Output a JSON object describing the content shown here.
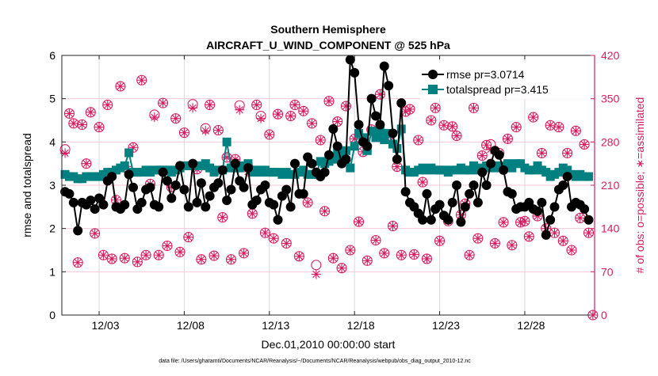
{
  "chart_data": {
    "type": "line",
    "title": [
      "Southern Hemisphere",
      "AIRCRAFT_U_WIND_COMPONENT @ 525 hPa"
    ],
    "xlabel": "Dec.01,2010 00:00:00 start",
    "ylabel": "rmse and totalspread",
    "ylabel_right": "# of obs: o=possible; ∗=assimilated",
    "footer": "data file: /Users/gharamti/Documents/NCAR/Reanalysis/~/Documents/NCAR/Reanalysis/webpub/obs_diag_output_2010-12.nc",
    "xlim": [
      -0.19,
      31.1
    ],
    "x_start_day": 0,
    "x_step_days": 0.25,
    "xticks": [
      2,
      7,
      12,
      17,
      22,
      27
    ],
    "xtick_labels": [
      "12/03",
      "12/08",
      "12/13",
      "12/18",
      "12/23",
      "12/28"
    ],
    "ylim": [
      0,
      6
    ],
    "yticks": [
      "0",
      "1",
      "2",
      "3",
      "4",
      "5",
      "6"
    ],
    "ylim_right": [
      0,
      420
    ],
    "yticks_right": [
      "0",
      "70",
      "140",
      "210",
      "280",
      "350",
      "420"
    ],
    "grid": true,
    "legend_position": "top-right",
    "colors": {
      "rmse": "#000000",
      "spread": "#008080",
      "obs": "#d81b60",
      "grid_h": "#f5c6d8",
      "grid_v": "#d9d9d9"
    },
    "series": [
      {
        "name": "rmse",
        "legend": "rmse pr=3.0714",
        "values": [
          2.85,
          2.8,
          2.6,
          1.95,
          2.6,
          2.55,
          2.65,
          2.45,
          2.7,
          2.55,
          3.1,
          3.2,
          2.5,
          2.45,
          2.55,
          3.25,
          2.95,
          2.45,
          2.6,
          2.9,
          2.95,
          2.55,
          2.5,
          3.3,
          3.1,
          2.7,
          3.0,
          3.45,
          2.9,
          2.5,
          3.5,
          2.6,
          3.05,
          2.5,
          2.75,
          2.95,
          3.05,
          3.35,
          2.65,
          2.9,
          3.5,
          3.1,
          2.95,
          3.4,
          2.55,
          2.65,
          2.9,
          3.0,
          2.6,
          2.55,
          2.2,
          2.75,
          2.9,
          2.5,
          3.5,
          2.8,
          2.8,
          3.65,
          3.5,
          3.3,
          3.2,
          3.3,
          3.7,
          4.3,
          3.9,
          3.5,
          3.6,
          5.9,
          5.6,
          4.4,
          4.0,
          3.9,
          5.0,
          4.6,
          4.4,
          5.75,
          5.3,
          4.2,
          3.6,
          4.9,
          2.85,
          2.6,
          2.5,
          2.35,
          2.2,
          2.8,
          2.2,
          2.45,
          2.55,
          2.3,
          2.2,
          2.6,
          3.0,
          2.15,
          2.5,
          2.8,
          3.0,
          2.6,
          3.3,
          3.0,
          3.5,
          3.8,
          3.7,
          3.35,
          2.85,
          2.8,
          2.45,
          2.5,
          2.5,
          2.6,
          2.45,
          2.4,
          2.6,
          1.85,
          2.2,
          2.5,
          2.9,
          3.0,
          3.2,
          2.5,
          2.6,
          2.55,
          2.45,
          2.2
        ]
      },
      {
        "name": "totalspread",
        "legend": "totalspread pr=3.415",
        "values": [
          3.25,
          3.2,
          3.2,
          3.15,
          3.15,
          3.2,
          3.2,
          3.2,
          3.2,
          3.25,
          3.3,
          3.3,
          3.35,
          3.4,
          3.45,
          3.75,
          3.3,
          3.3,
          3.3,
          3.35,
          3.3,
          3.35,
          3.35,
          3.35,
          3.35,
          3.3,
          3.35,
          3.4,
          3.45,
          3.45,
          3.45,
          3.45,
          3.45,
          3.5,
          3.4,
          3.3,
          3.35,
          3.35,
          4.0,
          3.4,
          3.4,
          3.4,
          3.45,
          3.5,
          3.3,
          3.35,
          3.3,
          3.35,
          3.3,
          3.3,
          3.3,
          3.25,
          3.3,
          3.25,
          3.25,
          3.3,
          3.35,
          3.25,
          3.25,
          3.25,
          3.55,
          3.5,
          3.55,
          3.6,
          3.75,
          3.65,
          3.8,
          3.4,
          3.9,
          4.2,
          4.1,
          3.8,
          4.25,
          4.1,
          4.25,
          4.05,
          4.2,
          3.95,
          3.85,
          4.3,
          3.35,
          3.3,
          3.3,
          3.35,
          3.4,
          3.35,
          3.4,
          3.35,
          3.35,
          3.35,
          3.3,
          3.35,
          3.35,
          3.4,
          3.35,
          3.35,
          3.45,
          3.35,
          3.4,
          3.45,
          3.4,
          3.45,
          3.4,
          3.45,
          3.5,
          3.4,
          3.5,
          3.5,
          3.4,
          3.35,
          3.35,
          3.45,
          3.35,
          3.3,
          3.2,
          3.25,
          3.3,
          3.4,
          3.35,
          3.25,
          3.2,
          3.25,
          3.2,
          3.2
        ]
      },
      {
        "name": "possible",
        "axis": "right",
        "values": [
          268,
          326,
          310,
          85,
          308,
          245,
          328,
          132,
          304,
          97,
          340,
          91,
          186,
          370,
          92,
          233,
          271,
          86,
          380,
          97,
          212,
          324,
          97,
          343,
          112,
          207,
          318,
          102,
          295,
          126,
          341,
          236,
          90,
          302,
          340,
          96,
          299,
          158,
          255,
          90,
          252,
          339,
          100,
          240,
          164,
          340,
          322,
          133,
          292,
          124,
          325,
          229,
          116,
          322,
          340,
          95,
          330,
          182,
          310,
          81,
          283,
          168,
          346,
          92,
          313,
          76,
          338,
          105,
          285,
          151,
          264,
          88,
          300,
          121,
          357,
          100,
          290,
          144,
          240,
          97,
          329,
          333,
          98,
          283,
          215,
          91,
          315,
          335,
          120,
          307,
          152,
          305,
          290,
          162,
          180,
          97,
          335,
          124,
          258,
          275,
          276,
          116,
          262,
          150,
          285,
          113,
          304,
          150,
          152,
          127,
          320,
          160,
          262,
          140,
          307,
          133,
          304,
          120,
          262,
          105,
          298,
          157,
          276,
          133,
          0
        ]
      },
      {
        "name": "assimilated",
        "axis": "right",
        "values": [
          262,
          326,
          310,
          85,
          308,
          245,
          328,
          132,
          304,
          97,
          340,
          91,
          186,
          370,
          92,
          233,
          271,
          86,
          380,
          97,
          212,
          320,
          97,
          343,
          112,
          207,
          318,
          102,
          295,
          126,
          335,
          236,
          90,
          298,
          340,
          96,
          299,
          158,
          255,
          90,
          252,
          332,
          100,
          232,
          164,
          340,
          318,
          133,
          292,
          124,
          325,
          229,
          116,
          322,
          340,
          95,
          330,
          182,
          310,
          66,
          283,
          168,
          346,
          92,
          313,
          76,
          338,
          105,
          285,
          151,
          264,
          88,
          300,
          121,
          357,
          100,
          290,
          144,
          240,
          97,
          329,
          333,
          98,
          283,
          215,
          91,
          315,
          335,
          120,
          307,
          152,
          305,
          290,
          162,
          180,
          97,
          335,
          124,
          258,
          275,
          268,
          116,
          262,
          150,
          285,
          113,
          304,
          150,
          152,
          127,
          320,
          160,
          262,
          140,
          307,
          133,
          304,
          120,
          262,
          105,
          298,
          157,
          276,
          133,
          0
        ]
      }
    ]
  }
}
